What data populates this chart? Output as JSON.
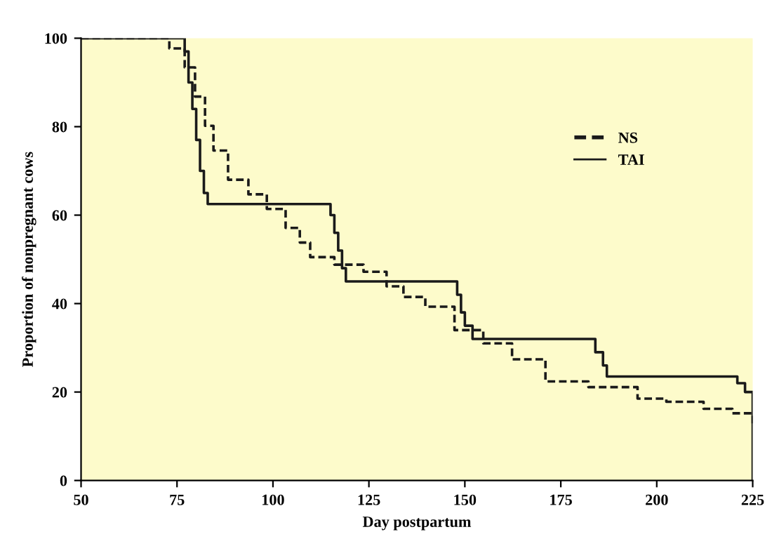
{
  "chart_data": {
    "type": "step",
    "xlabel": "Day postpartum",
    "ylabel": "Proportion of nonpregnant cows",
    "xlim": [
      50,
      225
    ],
    "ylim": [
      0,
      100
    ],
    "xticks": [
      50,
      75,
      100,
      125,
      150,
      175,
      200,
      225
    ],
    "yticks": [
      0,
      20,
      40,
      60,
      80,
      100
    ],
    "grid": false,
    "legend": "upper right",
    "marker": "none",
    "series": [
      {
        "name": "NS",
        "color": "#1a1a1a",
        "line_style": "dashed",
        "x": [
          50,
          67,
          73,
          77,
          79.7,
          82.3,
          84.5,
          88.3,
          93.6,
          98.4,
          103.3,
          107,
          109.7,
          116,
          123.6,
          129.6,
          134,
          139.7,
          147.3,
          154.8,
          162.3,
          171,
          182.2,
          195,
          202.5,
          212.2,
          219.7,
          225
        ],
        "values": [
          100,
          100,
          97.7,
          93.4,
          86.8,
          80.2,
          74.6,
          68,
          64.7,
          61.4,
          57.1,
          53.8,
          50.5,
          48.8,
          47.2,
          43.9,
          41.5,
          39.3,
          34,
          31,
          27.4,
          22.4,
          21.1,
          18.5,
          17.8,
          16.2,
          15.2,
          12.9
        ]
      },
      {
        "name": "TAI",
        "color": "#1a1a1a",
        "line_style": "solid",
        "x": [
          50,
          77,
          78,
          79,
          80,
          81,
          82,
          83,
          114,
          115,
          116,
          117,
          118,
          119,
          147,
          148,
          149,
          150,
          152,
          182,
          184,
          186,
          187,
          219,
          221,
          223,
          225
        ],
        "values": [
          100,
          97,
          90,
          84,
          77,
          70,
          65,
          62.5,
          62.5,
          60,
          56,
          52,
          48,
          45,
          45,
          42,
          38,
          35,
          32,
          32,
          29,
          26,
          23.5,
          23.5,
          22,
          20,
          0
        ]
      }
    ]
  }
}
